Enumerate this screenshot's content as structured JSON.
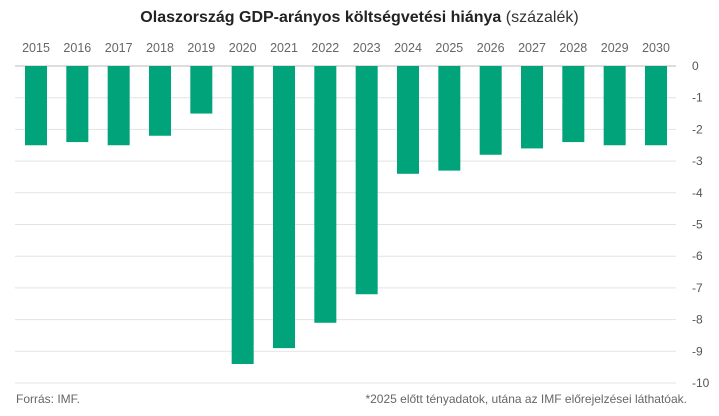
{
  "chart_data": {
    "type": "bar",
    "title": "Olaszország GDP-arányos költségvetési hiánya",
    "subtitle": "(százalék)",
    "categories": [
      "2015",
      "2016",
      "2017",
      "2018",
      "2019",
      "2020",
      "2021",
      "2022",
      "2023",
      "2024",
      "2025",
      "2026",
      "2027",
      "2028",
      "2029",
      "2030"
    ],
    "values": [
      -2.5,
      -2.4,
      -2.5,
      -2.2,
      -1.5,
      -9.4,
      -8.9,
      -8.1,
      -7.2,
      -3.4,
      -3.3,
      -2.8,
      -2.6,
      -2.4,
      -2.5,
      -2.5
    ],
    "yticks": [
      "0",
      "-1",
      "-2",
      "-3",
      "-4",
      "-5",
      "-6",
      "-7",
      "-8",
      "-9",
      "-10"
    ],
    "ylim": [
      -10,
      0
    ],
    "grid": true,
    "xlabel": "",
    "ylabel": "",
    "bar_color": "#00a37a"
  },
  "footer": {
    "source": "Forrás: IMF.",
    "note": "*2025 előtt tényadatok, utána az IMF előrejelzései láthatóak."
  }
}
